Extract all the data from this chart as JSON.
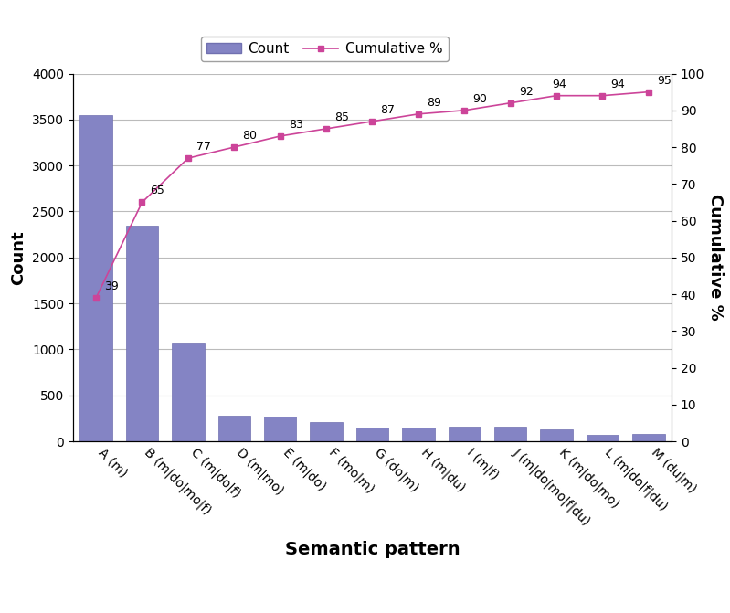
{
  "categories": [
    "A (m)",
    "B (m|do|mo|f)",
    "C (m|do|f)",
    "D (m|mo)",
    "E (m|do)",
    "F (mo|m)",
    "G (do|m)",
    "H (m|du)",
    "I (m|f)",
    "J (m|do|mo|f|du)",
    "K (m|do|mo)",
    "L (m|do|f|du)",
    "M (du|m)"
  ],
  "counts": [
    3550,
    2350,
    1060,
    280,
    270,
    205,
    155,
    150,
    160,
    160,
    135,
    70,
    80
  ],
  "cumulative_pct": [
    39,
    65,
    77,
    80,
    83,
    85,
    87,
    89,
    90,
    92,
    94,
    94,
    95
  ],
  "bar_color": "#8484c4",
  "line_color": "#cc4499",
  "marker_color": "#cc4499",
  "bar_edge_color": "#7070b0",
  "left_ylim": [
    0,
    4000
  ],
  "right_ylim": [
    0,
    100
  ],
  "left_yticks": [
    0,
    500,
    1000,
    1500,
    2000,
    2500,
    3000,
    3500,
    4000
  ],
  "right_yticks": [
    0,
    10,
    20,
    30,
    40,
    50,
    60,
    70,
    80,
    90,
    100
  ],
  "xlabel": "Semantic pattern",
  "ylabel_left": "Count",
  "ylabel_right": "Cumulative %",
  "legend_count_label": "Count",
  "legend_cum_label": "Cumulative %",
  "background_color": "#ffffff",
  "grid_color": "#bbbbbb",
  "axis_label_fontsize": 13,
  "tick_fontsize": 10,
  "annotation_fontsize": 9
}
